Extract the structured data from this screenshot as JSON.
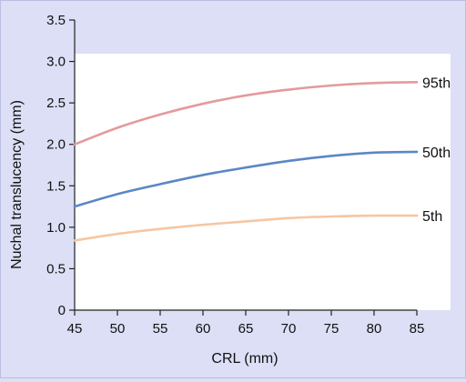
{
  "chart_data": {
    "type": "line",
    "xlabel": "CRL (mm)",
    "ylabel": "Nuchal translucency (mm)",
    "xlim": [
      45,
      90
    ],
    "ylim": [
      0,
      3.5
    ],
    "x_ticks": [
      45,
      50,
      55,
      60,
      65,
      70,
      75,
      80,
      85
    ],
    "y_ticks": [
      0,
      0.5,
      1.0,
      1.5,
      2.0,
      2.5,
      3.0,
      3.5
    ],
    "y_tick_labels": [
      "0",
      "0.5",
      "1.0",
      "1.5",
      "2.0",
      "2.5",
      "3.0",
      "3.5"
    ],
    "grid": false,
    "series": [
      {
        "name": "95th",
        "color": "#e39a9e",
        "x": [
          45,
          50,
          55,
          60,
          65,
          70,
          75,
          80,
          85
        ],
        "values": [
          2.0,
          2.2,
          2.36,
          2.49,
          2.59,
          2.66,
          2.71,
          2.74,
          2.75
        ]
      },
      {
        "name": "50th",
        "color": "#5b87c4",
        "x": [
          45,
          50,
          55,
          60,
          65,
          70,
          75,
          80,
          85
        ],
        "values": [
          1.25,
          1.4,
          1.52,
          1.63,
          1.72,
          1.8,
          1.86,
          1.9,
          1.91
        ]
      },
      {
        "name": "5th",
        "color": "#f6c6a2",
        "x": [
          45,
          50,
          55,
          60,
          65,
          70,
          75,
          80,
          85
        ],
        "values": [
          0.84,
          0.92,
          0.98,
          1.03,
          1.07,
          1.11,
          1.13,
          1.14,
          1.14
        ]
      }
    ]
  }
}
